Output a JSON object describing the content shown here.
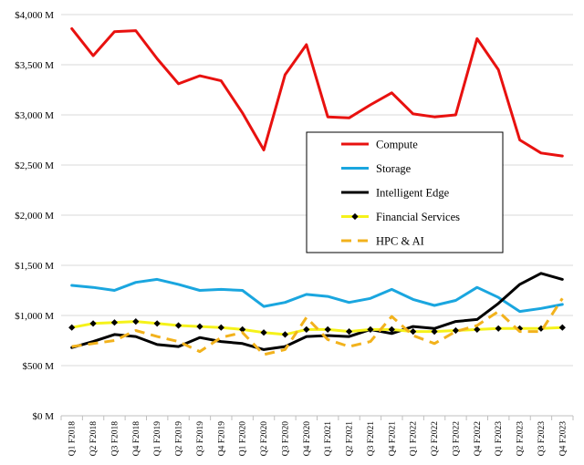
{
  "chart_data": {
    "type": "line",
    "x": [
      "Q1 F2018",
      "Q2 F2018",
      "Q3 F2018",
      "Q4 F2018",
      "Q1 F2019",
      "Q2 F2019",
      "Q3 F2019",
      "Q4 F2019",
      "Q1 F2020",
      "Q2 F2020",
      "Q3 F2020",
      "Q4 F2020",
      "Q1 F2021",
      "Q2 F2021",
      "Q3 F2021",
      "Q4 F2021",
      "Q1 F2022",
      "Q2 F2022",
      "Q3 F2022",
      "Q4 F2022",
      "Q1 F2023",
      "Q2 F2023",
      "Q3 F2023",
      "Q4 F2023"
    ],
    "y_ticks": [
      0,
      500,
      1000,
      1500,
      2000,
      2500,
      3000,
      3500,
      4000
    ],
    "y_tick_labels": [
      "$0 M",
      "$500 M",
      "$1,000 M",
      "$1,500 M",
      "$2,000 M",
      "$2,500 M",
      "$3,000 M",
      "$3,500 M",
      "$4,000 M"
    ],
    "ylim": [
      0,
      4000
    ],
    "grid": "horizontal",
    "legend_position": "center-right",
    "series": [
      {
        "name": "Compute",
        "color": "#e8110f",
        "style": "solid",
        "marker": "none",
        "values": [
          3860,
          3590,
          3830,
          3840,
          3560,
          3310,
          3390,
          3340,
          3020,
          2650,
          3400,
          3700,
          2980,
          2970,
          3100,
          3220,
          3010,
          2980,
          3000,
          3760,
          3450,
          2750,
          2620,
          2590
        ]
      },
      {
        "name": "Storage",
        "color": "#1aa6df",
        "style": "solid",
        "marker": "none",
        "values": [
          1300,
          1280,
          1250,
          1330,
          1360,
          1310,
          1250,
          1260,
          1250,
          1090,
          1130,
          1210,
          1190,
          1130,
          1170,
          1260,
          1160,
          1100,
          1150,
          1280,
          1180,
          1040,
          1070,
          1110
        ]
      },
      {
        "name": "Intelligent Edge",
        "color": "#000000",
        "style": "solid",
        "marker": "none",
        "values": [
          680,
          740,
          810,
          790,
          710,
          690,
          780,
          740,
          720,
          660,
          690,
          790,
          800,
          790,
          860,
          820,
          890,
          870,
          940,
          960,
          1120,
          1310,
          1420,
          1360
        ]
      },
      {
        "name": "Financial Services",
        "color": "#f5f21a",
        "style": "solid",
        "marker": "diamond",
        "values": [
          880,
          920,
          930,
          940,
          920,
          900,
          890,
          880,
          860,
          830,
          810,
          860,
          860,
          840,
          860,
          860,
          840,
          840,
          850,
          860,
          870,
          870,
          870,
          880
        ]
      },
      {
        "name": "HPC & AI",
        "color": "#f2b21c",
        "style": "dashed",
        "marker": "none",
        "values": [
          690,
          720,
          750,
          850,
          790,
          740,
          640,
          780,
          830,
          610,
          660,
          980,
          760,
          690,
          740,
          990,
          800,
          720,
          840,
          900,
          1040,
          840,
          840,
          1170
        ]
      }
    ]
  }
}
